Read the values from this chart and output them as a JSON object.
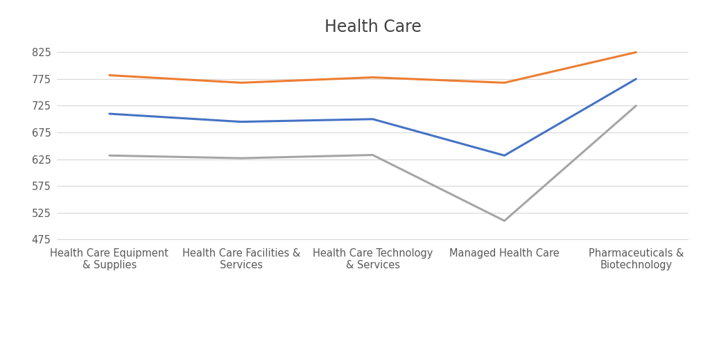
{
  "title": "Health Care",
  "categories": [
    "Health Care Equipment\n& Supplies",
    "Health Care Facilities &\nServices",
    "Health Care Technology\n& Services",
    "Managed Health Care",
    "Pharmaceuticals &\nBiotechnology"
  ],
  "series": {
    "Average": {
      "values": [
        710,
        695,
        700,
        632,
        775
      ],
      "color": "#4472C4",
      "linewidth": 2.2
    },
    "Avg + 1SD": {
      "values": [
        782,
        768,
        778,
        768,
        825
      ],
      "color": "#ED7D31",
      "linewidth": 2.2
    },
    "Avg - 1SD": {
      "values": [
        632,
        627,
        633,
        510,
        725
      ],
      "color": "#A5A5A5",
      "linewidth": 2.2
    }
  },
  "ylim": [
    470,
    845
  ],
  "yticks": [
    475,
    525,
    575,
    625,
    675,
    725,
    775,
    825
  ],
  "background_color": "#FFFFFF",
  "grid_color": "#D9D9D9",
  "title_fontsize": 17,
  "tick_fontsize": 10.5,
  "legend_fontsize": 10.5
}
